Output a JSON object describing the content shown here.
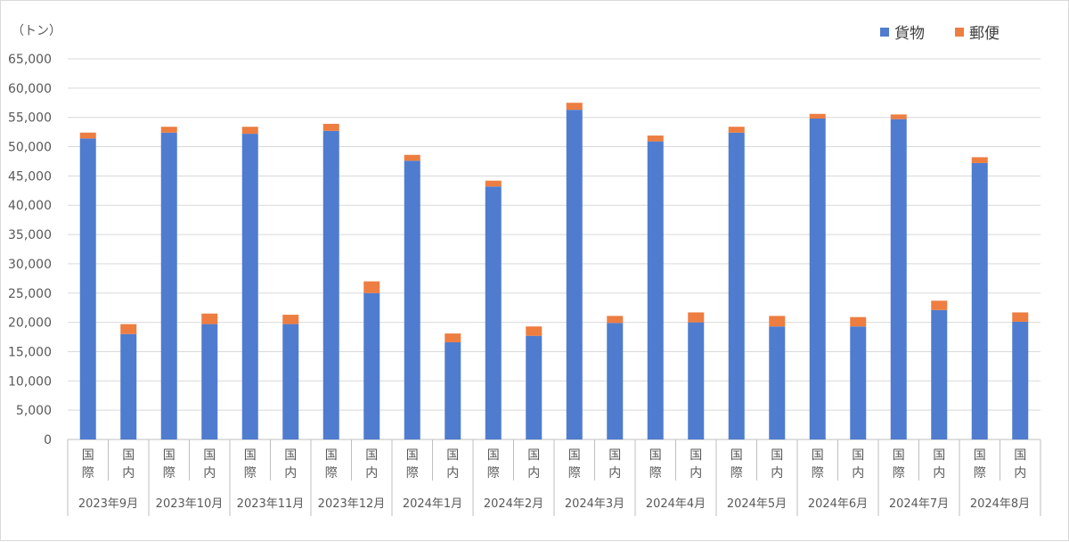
{
  "chart_data": {
    "type": "bar",
    "stacked": true,
    "y_unit_label": "（トン）",
    "ylim": [
      0,
      65000
    ],
    "y_ticks": [
      "0",
      "5,000",
      "10,000",
      "15,000",
      "20,000",
      "25,000",
      "30,000",
      "35,000",
      "40,000",
      "45,000",
      "50,000",
      "55,000",
      "60,000",
      "65,000"
    ],
    "y_tick_values": [
      0,
      5000,
      10000,
      15000,
      20000,
      25000,
      30000,
      35000,
      40000,
      45000,
      50000,
      55000,
      60000,
      65000
    ],
    "grid": true,
    "legend_position": "top-right",
    "groups": [
      "2023年9月",
      "2023年10月",
      "2023年11月",
      "2023年12月",
      "2024年1月",
      "2024年2月",
      "2024年3月",
      "2024年4月",
      "2024年5月",
      "2024年6月",
      "2024年7月",
      "2024年8月"
    ],
    "subcategories": [
      "国際",
      "国内"
    ],
    "series": [
      {
        "name": "貨物",
        "color": "#4f7ccf",
        "values": [
          51400,
          18000,
          52400,
          19700,
          52200,
          19700,
          52700,
          25000,
          47600,
          16600,
          43200,
          17700,
          56300,
          19900,
          50900,
          20000,
          52400,
          19300,
          54800,
          19300,
          54700,
          22100,
          47200,
          20100
        ]
      },
      {
        "name": "郵便",
        "color": "#ed7d41",
        "values": [
          1000,
          1700,
          1000,
          1800,
          1200,
          1600,
          1200,
          2000,
          1000,
          1500,
          1000,
          1600,
          1200,
          1200,
          1000,
          1700,
          1000,
          1800,
          800,
          1600,
          800,
          1600,
          1000,
          1600
        ]
      }
    ]
  }
}
